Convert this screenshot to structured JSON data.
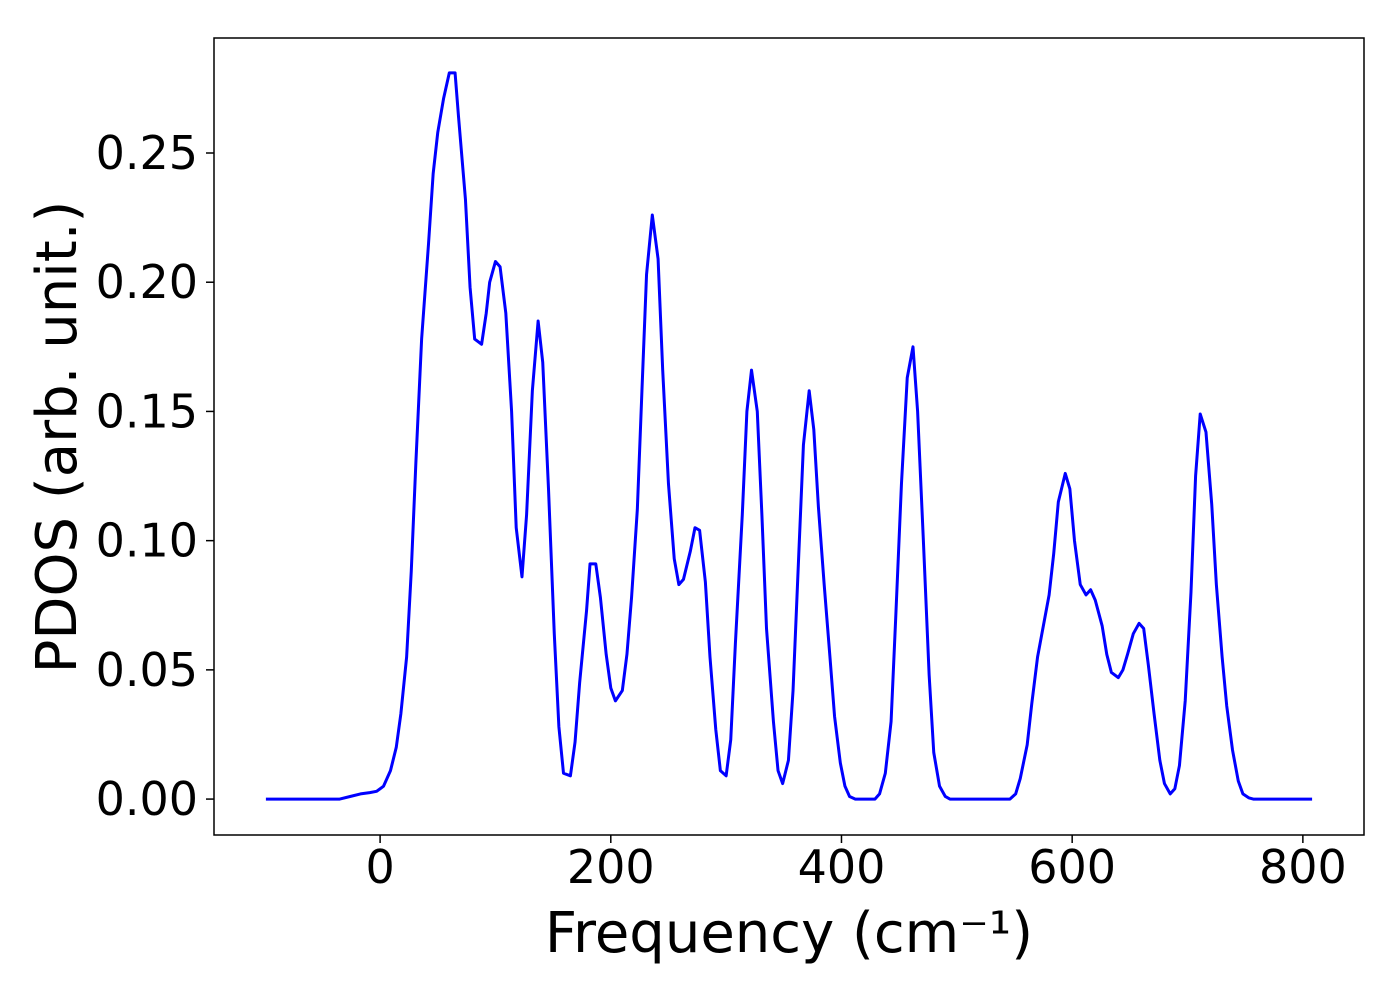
{
  "chart_data": {
    "type": "line",
    "xlabel": "Frequency (cm⁻¹)",
    "ylabel": "PDOS (arb. unit.)",
    "xlim": [
      -144,
      853
    ],
    "ylim": [
      -0.0139,
      0.2945
    ],
    "xticks": [
      0,
      200,
      400,
      600,
      800
    ],
    "yticks": [
      {
        "value": 0,
        "label": "0.00"
      },
      {
        "value": 0.05,
        "label": "0.05"
      },
      {
        "value": 0.1,
        "label": "0.10"
      },
      {
        "value": 0.15,
        "label": "0.15"
      },
      {
        "value": 0.2,
        "label": "0.20"
      },
      {
        "value": 0.25,
        "label": "0.25"
      }
    ],
    "grid": false,
    "series": [
      {
        "color": "#0000ff",
        "x": [
          -99,
          -35,
          -26,
          -17,
          -9,
          -3,
          3,
          9,
          14,
          18,
          23,
          27,
          31,
          36,
          42,
          46,
          50,
          55,
          60,
          65,
          68,
          74,
          78,
          82,
          88,
          92,
          95,
          100,
          104,
          109,
          114,
          118,
          123,
          127,
          132,
          137,
          141,
          146,
          151,
          155,
          159,
          165,
          169,
          173,
          179,
          182,
          187,
          191,
          196,
          200,
          204,
          210,
          214,
          218,
          223,
          227,
          231,
          236,
          241,
          245,
          250,
          255,
          259,
          263,
          269,
          273,
          277,
          282,
          286,
          291,
          295,
          300,
          304,
          308,
          314,
          318,
          322,
          327,
          331,
          335,
          341,
          345,
          349,
          354,
          358,
          363,
          367,
          372,
          376,
          380,
          385,
          390,
          394,
          399,
          403,
          407,
          412,
          429,
          433,
          438,
          443,
          447,
          452,
          457,
          462,
          466,
          471,
          476,
          480,
          485,
          490,
          494,
          546,
          551,
          555,
          561,
          565,
          570,
          575,
          580,
          584,
          588,
          594,
          598,
          602,
          607,
          612,
          616,
          620,
          626,
          630,
          634,
          640,
          644,
          648,
          653,
          658,
          662,
          666,
          671,
          676,
          680,
          685,
          689,
          693,
          698,
          703,
          707,
          711,
          716,
          721,
          725,
          730,
          734,
          739,
          744,
          748,
          753,
          757,
          808
        ],
        "values": [
          0,
          0,
          0.001,
          0.002,
          0.0025,
          0.003,
          0.005,
          0.011,
          0.02,
          0.033,
          0.055,
          0.088,
          0.13,
          0.178,
          0.215,
          0.242,
          0.258,
          0.271,
          0.281,
          0.281,
          0.264,
          0.232,
          0.198,
          0.178,
          0.176,
          0.188,
          0.2,
          0.208,
          0.206,
          0.188,
          0.15,
          0.105,
          0.086,
          0.11,
          0.158,
          0.185,
          0.169,
          0.12,
          0.064,
          0.028,
          0.01,
          0.009,
          0.022,
          0.045,
          0.073,
          0.091,
          0.091,
          0.078,
          0.056,
          0.043,
          0.038,
          0.042,
          0.056,
          0.078,
          0.112,
          0.158,
          0.203,
          0.226,
          0.209,
          0.166,
          0.122,
          0.093,
          0.083,
          0.085,
          0.096,
          0.105,
          0.104,
          0.084,
          0.055,
          0.027,
          0.011,
          0.009,
          0.023,
          0.06,
          0.11,
          0.15,
          0.166,
          0.15,
          0.11,
          0.066,
          0.03,
          0.011,
          0.006,
          0.015,
          0.042,
          0.095,
          0.137,
          0.158,
          0.143,
          0.113,
          0.083,
          0.055,
          0.032,
          0.014,
          0.005,
          0.001,
          0,
          0,
          0.002,
          0.01,
          0.03,
          0.07,
          0.122,
          0.163,
          0.175,
          0.15,
          0.1,
          0.048,
          0.018,
          0.005,
          0.001,
          0,
          0,
          0.002,
          0.008,
          0.021,
          0.037,
          0.055,
          0.067,
          0.079,
          0.095,
          0.115,
          0.126,
          0.12,
          0.1,
          0.083,
          0.079,
          0.081,
          0.077,
          0.067,
          0.056,
          0.049,
          0.047,
          0.05,
          0.056,
          0.064,
          0.068,
          0.066,
          0.052,
          0.033,
          0.015,
          0.006,
          0.002,
          0.004,
          0.013,
          0.038,
          0.08,
          0.125,
          0.149,
          0.142,
          0.114,
          0.083,
          0.055,
          0.036,
          0.019,
          0.007,
          0.002,
          0.0005,
          0,
          0
        ]
      }
    ]
  }
}
